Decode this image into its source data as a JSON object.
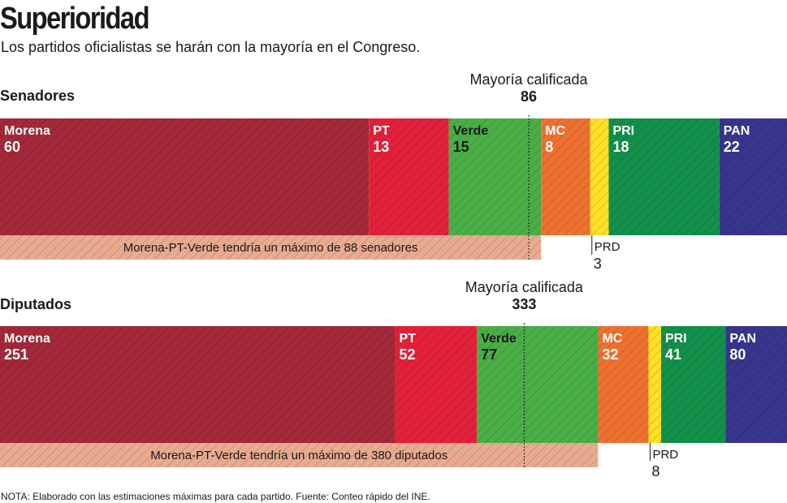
{
  "title": "Superioridad",
  "subtitle": "Los partidos oficialistas se harán con la mayoría en el Congreso.",
  "note": "NOTA: Elaborado con las estimaciones máximas para cada partido. Fuente: Conteo rápido del INE.",
  "colors": {
    "Morena": "#a3283a",
    "PT": "#e3203a",
    "Verde": "#4aae47",
    "MC": "#ee7130",
    "PRD": "#ffe024",
    "PRI": "#12904a",
    "PAN": "#37368c",
    "coalition": "#e9ab90"
  },
  "chart_data": [
    {
      "type": "bar",
      "stacked": true,
      "title": "Senadores",
      "majority_label": "Mayoría calificada",
      "majority_value": 86,
      "total": 128,
      "series": [
        {
          "name": "Morena",
          "value": 60
        },
        {
          "name": "PT",
          "value": 13
        },
        {
          "name": "Verde",
          "value": 15
        },
        {
          "name": "MC",
          "value": 8
        },
        {
          "name": "PRD",
          "value": 3
        },
        {
          "name": "PRI",
          "value": 18
        },
        {
          "name": "PAN",
          "value": 22
        }
      ],
      "coalition_text": "Morena-PT-Verde tendría un máximo de 88 senadores",
      "coalition_value": 88
    },
    {
      "type": "bar",
      "stacked": true,
      "title": "Diputados",
      "majority_label": "Mayoría calificada",
      "majority_value": 333,
      "total": 500,
      "series": [
        {
          "name": "Morena",
          "value": 251
        },
        {
          "name": "PT",
          "value": 52
        },
        {
          "name": "Verde",
          "value": 77
        },
        {
          "name": "MC",
          "value": 32
        },
        {
          "name": "PRD",
          "value": 8
        },
        {
          "name": "PRI",
          "value": 41
        },
        {
          "name": "PAN",
          "value": 80
        }
      ],
      "coalition_text": "Morena-PT-Verde tendría un máximo de 380 diputados",
      "coalition_value": 380
    }
  ]
}
